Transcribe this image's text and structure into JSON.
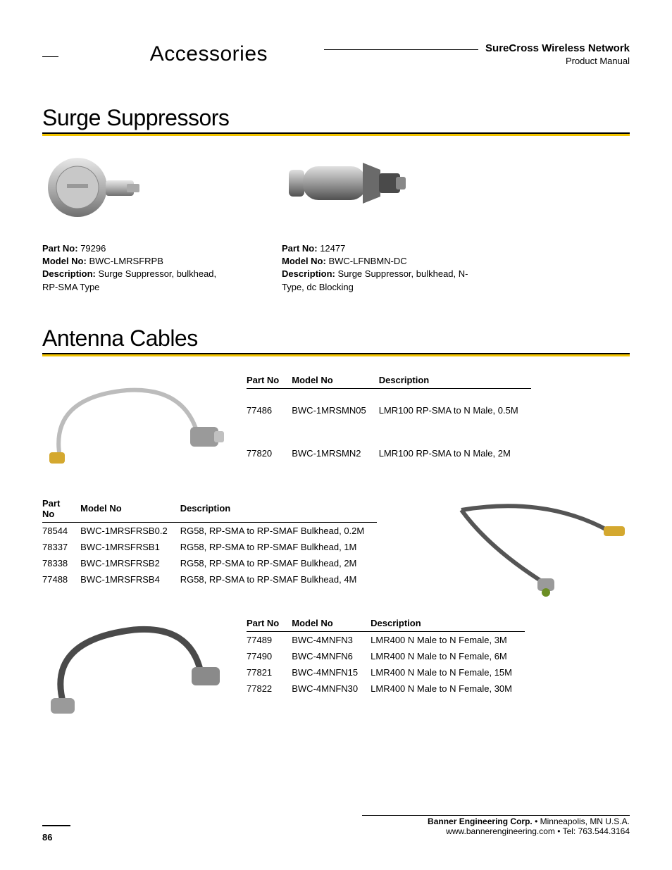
{
  "header": {
    "section": "Accessories",
    "brand": "SureCross Wireless Network",
    "subtitle": "Product Manual"
  },
  "sections": {
    "surge": {
      "title": "Surge Suppressors",
      "items": [
        {
          "part_no_label": "Part No:",
          "part_no": "79296",
          "model_no_label": "Model No:",
          "model_no": "BWC-LMRSFRPB",
          "desc_label": "Description:",
          "desc": "Surge Suppressor, bulkhead, RP-SMA Type"
        },
        {
          "part_no_label": "Part No:",
          "part_no": "12477",
          "model_no_label": "Model No:",
          "model_no": "BWC-LFNBMN-DC",
          "desc_label": "Description:",
          "desc": "Surge Suppressor, bulkhead, N-Type, dc Blocking"
        }
      ]
    },
    "antenna": {
      "title": "Antenna Cables",
      "table_headers": {
        "part": "Part No",
        "model": "Model No",
        "desc": "Description"
      },
      "table1": [
        {
          "part": "77486",
          "model": "BWC-1MRSMN05",
          "desc": "LMR100 RP-SMA to N Male, 0.5M"
        },
        {
          "part": "77820",
          "model": "BWC-1MRSMN2",
          "desc": "LMR100 RP-SMA to N Male, 2M"
        }
      ],
      "table2": [
        {
          "part": "78544",
          "model": "BWC-1MRSFRSB0.2",
          "desc": "RG58, RP-SMA to RP-SMAF Bulkhead, 0.2M"
        },
        {
          "part": "78337",
          "model": "BWC-1MRSFRSB1",
          "desc": "RG58, RP-SMA to RP-SMAF Bulkhead, 1M"
        },
        {
          "part": "78338",
          "model": "BWC-1MRSFRSB2",
          "desc": "RG58, RP-SMA to RP-SMAF Bulkhead, 2M"
        },
        {
          "part": "77488",
          "model": "BWC-1MRSFRSB4",
          "desc": "RG58, RP-SMA to RP-SMAF Bulkhead, 4M"
        }
      ],
      "table3": [
        {
          "part": "77489",
          "model": "BWC-4MNFN3",
          "desc": "LMR400 N Male to N Female, 3M"
        },
        {
          "part": "77490",
          "model": "BWC-4MNFN6",
          "desc": "LMR400 N Male to N Female, 6M"
        },
        {
          "part": "77821",
          "model": "BWC-4MNFN15",
          "desc": "LMR400 N Male to N Female, 15M"
        },
        {
          "part": "77822",
          "model": "BWC-4MNFN30",
          "desc": "LMR400 N Male to N Female, 30M"
        }
      ]
    }
  },
  "footer": {
    "company": "Banner Engineering Corp.",
    "bullet": " • ",
    "location": "Minneapolis, MN U.S.A.",
    "web": "www.bannerengineering.com",
    "tel": "Tel: 763.544.3164",
    "page": "86"
  },
  "colors": {
    "accent": "#f2c400",
    "text": "#000000",
    "metal_light": "#d0d0d0",
    "metal_dark": "#6b6b6b",
    "gold": "#d4a82f"
  }
}
